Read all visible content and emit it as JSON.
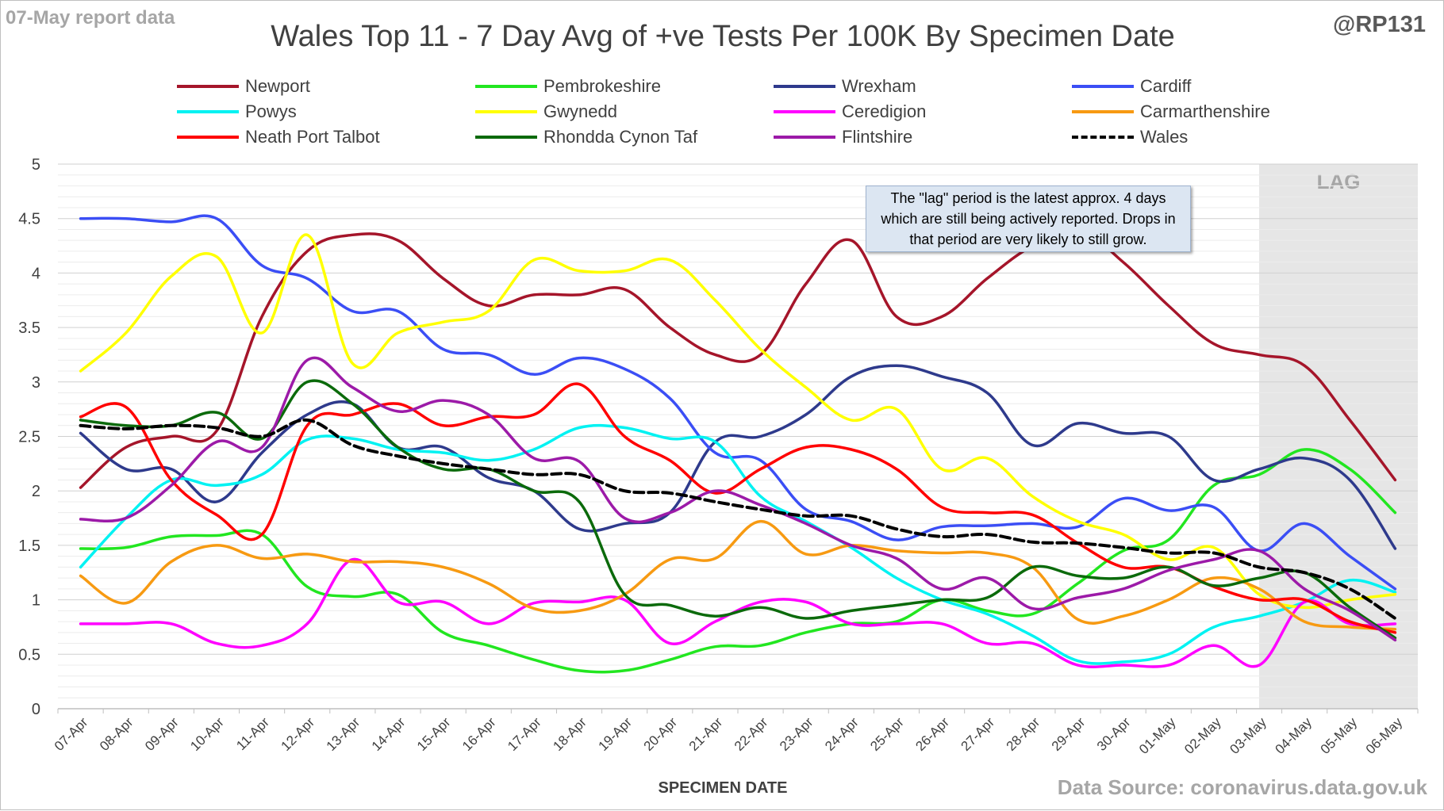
{
  "header": {
    "report_note": "07-May report data",
    "handle": "@RP131",
    "title": "Wales Top 11 - 7 Day Avg of +ve Tests Per 100K By Specimen Date"
  },
  "footer": {
    "source": "Data Source: coronavirus.data.gov.uk"
  },
  "annotation": {
    "text": "The \"lag\" period is the latest approx. 4 days which are still being actively reported. Drops in that period are very likely to still grow."
  },
  "chart_data": {
    "type": "line",
    "title": "Wales Top 11 - 7 Day Avg of +ve Tests Per 100K By Specimen Date",
    "xlabel": "SPECIMEN DATE",
    "ylabel": "",
    "ylim": [
      0,
      5
    ],
    "yticks": [
      0,
      0.5,
      1,
      1.5,
      2,
      2.5,
      3,
      3.5,
      4,
      4.5,
      5
    ],
    "grid": true,
    "legend_position": "top",
    "lag_label": "LAG",
    "lag_start": "03-May",
    "lag_color": "#e6e6e6",
    "categories": [
      "07-Apr",
      "08-Apr",
      "09-Apr",
      "10-Apr",
      "11-Apr",
      "12-Apr",
      "13-Apr",
      "14-Apr",
      "15-Apr",
      "16-Apr",
      "17-Apr",
      "18-Apr",
      "19-Apr",
      "20-Apr",
      "21-Apr",
      "22-Apr",
      "23-Apr",
      "24-Apr",
      "25-Apr",
      "26-Apr",
      "27-Apr",
      "28-Apr",
      "29-Apr",
      "30-Apr",
      "01-May",
      "02-May",
      "03-May",
      "04-May",
      "05-May",
      "06-May"
    ],
    "series": [
      {
        "name": "Newport",
        "color": "#a5152a",
        "dash": false,
        "values": [
          2.03,
          2.4,
          2.5,
          2.55,
          3.6,
          4.2,
          4.35,
          4.3,
          3.95,
          3.7,
          3.8,
          3.8,
          3.85,
          3.5,
          3.25,
          3.25,
          3.9,
          4.3,
          3.6,
          3.6,
          3.95,
          4.25,
          4.4,
          4.1,
          3.7,
          3.35,
          3.25,
          3.15,
          2.65,
          2.1
        ]
      },
      {
        "name": "Pembrokeshire",
        "color": "#22e620",
        "dash": false,
        "values": [
          1.47,
          1.48,
          1.58,
          1.59,
          1.6,
          1.12,
          1.03,
          1.05,
          0.7,
          0.58,
          0.45,
          0.35,
          0.35,
          0.45,
          0.57,
          0.58,
          0.7,
          0.78,
          0.8,
          1.0,
          0.9,
          0.87,
          1.15,
          1.45,
          1.55,
          2.05,
          2.15,
          2.38,
          2.2,
          1.8
        ]
      },
      {
        "name": "Wrexham",
        "color": "#2e3a8c",
        "dash": false,
        "values": [
          2.53,
          2.2,
          2.2,
          1.9,
          2.35,
          2.7,
          2.8,
          2.4,
          2.4,
          2.12,
          2.0,
          1.65,
          1.7,
          1.8,
          2.45,
          2.5,
          2.7,
          3.05,
          3.15,
          3.05,
          2.9,
          2.42,
          2.62,
          2.53,
          2.5,
          2.1,
          2.2,
          2.3,
          2.1,
          1.47
        ]
      },
      {
        "name": "Cardiff",
        "color": "#3b4ef5",
        "dash": false,
        "values": [
          4.5,
          4.5,
          4.47,
          4.5,
          4.07,
          3.95,
          3.65,
          3.65,
          3.3,
          3.25,
          3.07,
          3.22,
          3.12,
          2.85,
          2.35,
          2.28,
          1.83,
          1.72,
          1.55,
          1.67,
          1.68,
          1.7,
          1.67,
          1.93,
          1.82,
          1.85,
          1.45,
          1.7,
          1.4,
          1.1
        ]
      },
      {
        "name": "Powys",
        "color": "#00f2f2",
        "dash": false,
        "values": [
          1.3,
          1.75,
          2.1,
          2.05,
          2.15,
          2.47,
          2.48,
          2.38,
          2.35,
          2.28,
          2.38,
          2.58,
          2.58,
          2.48,
          2.45,
          1.95,
          1.72,
          1.48,
          1.2,
          1.0,
          0.87,
          0.67,
          0.44,
          0.43,
          0.5,
          0.75,
          0.85,
          0.98,
          1.18,
          1.07
        ]
      },
      {
        "name": "Gwynedd",
        "color": "#ffff00",
        "dash": false,
        "values": [
          3.1,
          3.45,
          3.97,
          4.15,
          3.45,
          4.35,
          3.17,
          3.45,
          3.55,
          3.65,
          4.12,
          4.02,
          4.02,
          4.12,
          3.75,
          3.3,
          2.95,
          2.65,
          2.75,
          2.2,
          2.3,
          1.95,
          1.72,
          1.6,
          1.37,
          1.48,
          1.05,
          0.93,
          1.0,
          1.05
        ]
      },
      {
        "name": "Ceredigion",
        "color": "#ff00ff",
        "dash": false,
        "values": [
          0.78,
          0.78,
          0.78,
          0.6,
          0.58,
          0.78,
          1.37,
          0.98,
          0.98,
          0.78,
          0.97,
          0.98,
          1.0,
          0.6,
          0.8,
          0.98,
          0.98,
          0.78,
          0.78,
          0.78,
          0.6,
          0.6,
          0.4,
          0.4,
          0.4,
          0.58,
          0.4,
          0.98,
          0.78,
          0.78
        ]
      },
      {
        "name": "Carmarthenshire",
        "color": "#f79a12",
        "dash": false,
        "values": [
          1.22,
          0.97,
          1.35,
          1.5,
          1.38,
          1.42,
          1.35,
          1.35,
          1.3,
          1.15,
          0.92,
          0.9,
          1.05,
          1.37,
          1.38,
          1.72,
          1.42,
          1.5,
          1.45,
          1.43,
          1.43,
          1.3,
          0.82,
          0.85,
          1.0,
          1.2,
          1.1,
          0.8,
          0.75,
          0.73
        ]
      },
      {
        "name": "Neath Port Talbot",
        "color": "#ff0000",
        "dash": false,
        "values": [
          2.68,
          2.77,
          2.1,
          1.78,
          1.6,
          2.6,
          2.7,
          2.8,
          2.6,
          2.68,
          2.7,
          2.98,
          2.5,
          2.28,
          1.98,
          2.2,
          2.4,
          2.38,
          2.2,
          1.85,
          1.8,
          1.78,
          1.52,
          1.3,
          1.3,
          1.12,
          1.0,
          1.0,
          0.8,
          0.7
        ]
      },
      {
        "name": "Rhondda Cynon Taf",
        "color": "#0b6a0b",
        "dash": false,
        "values": [
          2.65,
          2.6,
          2.6,
          2.72,
          2.48,
          3.0,
          2.8,
          2.4,
          2.2,
          2.2,
          2.0,
          1.9,
          1.05,
          0.95,
          0.85,
          0.93,
          0.83,
          0.9,
          0.95,
          1.0,
          1.02,
          1.3,
          1.22,
          1.2,
          1.3,
          1.13,
          1.2,
          1.25,
          0.93,
          0.65
        ]
      },
      {
        "name": "Flintshire",
        "color": "#9c1aa8",
        "dash": false,
        "values": [
          1.74,
          1.75,
          2.05,
          2.45,
          2.4,
          3.2,
          2.95,
          2.73,
          2.83,
          2.7,
          2.3,
          2.27,
          1.75,
          1.8,
          2.0,
          1.87,
          1.7,
          1.5,
          1.38,
          1.1,
          1.2,
          0.92,
          1.02,
          1.1,
          1.27,
          1.37,
          1.45,
          1.1,
          0.9,
          0.63
        ]
      },
      {
        "name": "Wales",
        "color": "#000000",
        "dash": true,
        "values": [
          2.6,
          2.57,
          2.6,
          2.58,
          2.5,
          2.65,
          2.42,
          2.32,
          2.25,
          2.2,
          2.15,
          2.15,
          2.0,
          1.98,
          1.9,
          1.83,
          1.77,
          1.77,
          1.65,
          1.58,
          1.6,
          1.53,
          1.52,
          1.48,
          1.43,
          1.43,
          1.3,
          1.25,
          1.1,
          0.83
        ]
      }
    ]
  }
}
